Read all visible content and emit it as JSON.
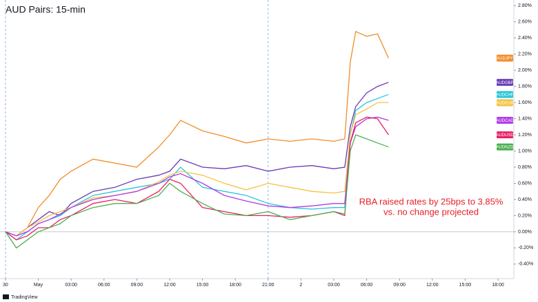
{
  "chart_data": {
    "type": "line",
    "title": "AUD Pairs: 15-min",
    "annotation": [
      "RBA raised rates by 25bps to 3.85%",
      "vs. no change projected"
    ],
    "footer": "TradingView",
    "x": [
      0,
      1,
      2,
      3,
      4,
      5,
      6,
      8,
      10,
      12,
      14,
      15,
      16,
      18,
      20,
      22,
      24,
      26,
      28,
      30,
      31,
      31.5,
      32,
      33,
      34,
      35
    ],
    "xlim": [
      -0.5,
      46.45
    ],
    "xticks": [
      {
        "value": 0,
        "label": "30"
      },
      {
        "value": 3,
        "label": "May"
      },
      {
        "value": 6,
        "label": "03:00"
      },
      {
        "value": 9,
        "label": "06:00"
      },
      {
        "value": 12,
        "label": "09:00"
      },
      {
        "value": 15,
        "label": "12:00"
      },
      {
        "value": 18,
        "label": "15:00"
      },
      {
        "value": 21,
        "label": "18:00"
      },
      {
        "value": 24,
        "label": "21:00"
      },
      {
        "value": 27,
        "label": "2"
      },
      {
        "value": 30,
        "label": "03:00"
      },
      {
        "value": 33,
        "label": "06:00"
      },
      {
        "value": 36,
        "label": "09:00"
      },
      {
        "value": 39,
        "label": "12:00"
      },
      {
        "value": 42,
        "label": "15:00"
      },
      {
        "value": 45,
        "label": "18:00"
      }
    ],
    "ylim": [
      -0.58,
      2.87
    ],
    "yticks": [
      {
        "value": -0.4,
        "label": "-0.40%"
      },
      {
        "value": -0.2,
        "label": "-0.20%"
      },
      {
        "value": 0,
        "label": "0.00%"
      },
      {
        "value": 0.2,
        "label": "0.20%"
      },
      {
        "value": 0.4,
        "label": "0.40%"
      },
      {
        "value": 0.6,
        "label": "0.60%"
      },
      {
        "value": 0.8,
        "label": "0.80%"
      },
      {
        "value": 1,
        "label": "1.00%"
      },
      {
        "value": 1.2,
        "label": "1.20%"
      },
      {
        "value": 1.4,
        "label": "1.40%"
      },
      {
        "value": 1.6,
        "label": "1.60%"
      },
      {
        "value": 1.8,
        "label": "1.80%"
      },
      {
        "value": 2,
        "label": "2.00%"
      },
      {
        "value": 2.2,
        "label": "2.20%"
      },
      {
        "value": 2.4,
        "label": "2.40%"
      },
      {
        "value": 2.6,
        "label": "2.60%"
      },
      {
        "value": 2.8,
        "label": "2.80%"
      }
    ],
    "session_breaks": [
      0,
      24
    ],
    "grid": false,
    "series": [
      {
        "name": "AUDJPY",
        "color": "#f28c28",
        "values": [
          0,
          -0.05,
          0.05,
          0.3,
          0.45,
          0.65,
          0.75,
          0.9,
          0.85,
          0.8,
          1.05,
          1.2,
          1.38,
          1.25,
          1.18,
          1.1,
          1.15,
          1.12,
          1.15,
          1.12,
          1.15,
          2.1,
          2.48,
          2.42,
          2.45,
          2.15
        ]
      },
      {
        "name": "AUDGBP",
        "color": "#673ab7",
        "values": [
          0,
          -0.05,
          0.05,
          0.15,
          0.25,
          0.2,
          0.35,
          0.5,
          0.55,
          0.65,
          0.7,
          0.75,
          0.9,
          0.8,
          0.78,
          0.82,
          0.75,
          0.8,
          0.82,
          0.78,
          0.8,
          1.3,
          1.55,
          1.72,
          1.8,
          1.85
        ]
      },
      {
        "name": "AUDCHF",
        "color": "#26c6da",
        "values": [
          0,
          -0.1,
          0,
          0.1,
          0.15,
          0.2,
          0.3,
          0.45,
          0.5,
          0.55,
          0.6,
          0.65,
          0.8,
          0.55,
          0.5,
          0.45,
          0.35,
          0.3,
          0.28,
          0.3,
          0.3,
          1.2,
          1.5,
          1.6,
          1.65,
          1.7
        ]
      },
      {
        "name": "AUDEUR",
        "color": "#f5c242",
        "values": [
          0,
          -0.05,
          0.05,
          0.12,
          0.2,
          0.25,
          0.3,
          0.42,
          0.45,
          0.5,
          0.62,
          0.7,
          0.75,
          0.7,
          0.6,
          0.52,
          0.6,
          0.55,
          0.5,
          0.48,
          0.5,
          1.2,
          1.45,
          1.52,
          1.6,
          1.6
        ]
      },
      {
        "name": "AUDCAD",
        "color": "#b039e6",
        "values": [
          0,
          -0.05,
          0,
          0.1,
          0.15,
          0.22,
          0.3,
          0.4,
          0.45,
          0.5,
          0.6,
          0.68,
          0.72,
          0.6,
          0.45,
          0.38,
          0.32,
          0.3,
          0.32,
          0.35,
          0.35,
          1.1,
          1.3,
          1.4,
          1.42,
          1.38
        ]
      },
      {
        "name": "AUDUSD",
        "color": "#e91e63",
        "values": [
          0,
          -0.1,
          -0.05,
          0.05,
          0.05,
          0.15,
          0.2,
          0.35,
          0.4,
          0.35,
          0.5,
          0.65,
          0.6,
          0.3,
          0.25,
          0.2,
          0.2,
          0.18,
          0.2,
          0.25,
          0.2,
          1.1,
          1.35,
          1.42,
          1.4,
          1.2
        ]
      },
      {
        "name": "AUDNZD",
        "color": "#4caf50",
        "values": [
          0,
          -0.2,
          -0.1,
          0,
          0.05,
          0.1,
          0.2,
          0.3,
          0.35,
          0.35,
          0.45,
          0.6,
          0.5,
          0.35,
          0.22,
          0.2,
          0.25,
          0.15,
          0.2,
          0.25,
          0.22,
          1.0,
          1.2,
          1.15,
          1.1,
          1.05
        ]
      }
    ]
  }
}
